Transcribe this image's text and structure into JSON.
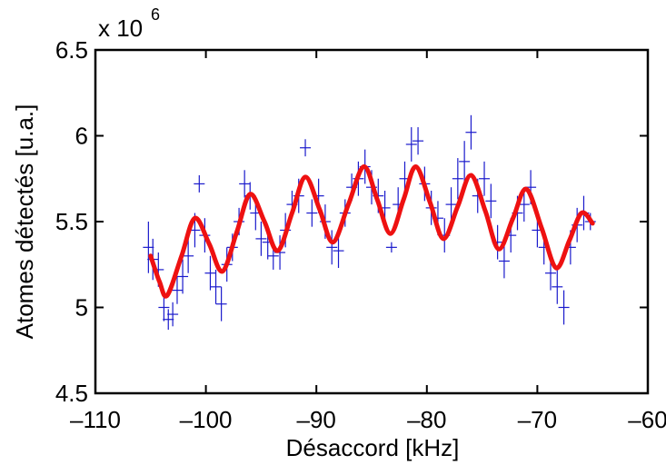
{
  "chart_data": {
    "type": "scatter",
    "x_label": "Désaccord  [kHz]",
    "y_label": "Atomes détectés  [u.a.]",
    "y_multiplier": "x 10",
    "y_multiplier_exponent": "6",
    "xlim": [
      -110,
      -60
    ],
    "xticks": [
      {
        "value": -110,
        "label": "–110"
      },
      {
        "value": -100,
        "label": "–100"
      },
      {
        "value": -90,
        "label": "–90"
      },
      {
        "value": -80,
        "label": "–80"
      },
      {
        "value": -70,
        "label": "–70"
      },
      {
        "value": -60,
        "label": "–60"
      }
    ],
    "ylim": [
      4.5,
      6.5
    ],
    "yticks": [
      4.5,
      5,
      5.5,
      6,
      6.5
    ],
    "points": {
      "color": "#1a1acc",
      "x": [
        -105.2,
        -104.8,
        -104.3,
        -103.8,
        -103.4,
        -103.0,
        -102.6,
        -102.1,
        -101.6,
        -101.0,
        -100.6,
        -100.1,
        -99.6,
        -99.1,
        -98.6,
        -98.1,
        -97.6,
        -97.0,
        -96.5,
        -96.0,
        -95.5,
        -95.0,
        -94.4,
        -93.9,
        -93.3,
        -92.8,
        -92.2,
        -91.6,
        -91.0,
        -90.4,
        -89.8,
        -89.2,
        -88.6,
        -88.0,
        -87.4,
        -86.8,
        -86.2,
        -85.6,
        -85.0,
        -84.4,
        -83.8,
        -83.2,
        -82.6,
        -82.0,
        -81.4,
        -80.8,
        -80.2,
        -79.6,
        -79.0,
        -78.4,
        -77.8,
        -77.2,
        -76.6,
        -76.0,
        -75.4,
        -74.8,
        -74.2,
        -73.6,
        -73.0,
        -72.4,
        -71.8,
        -71.2,
        -70.6,
        -70.0,
        -69.4,
        -68.8,
        -68.2,
        -67.6,
        -67.0,
        -66.4,
        -65.8,
        -65.2
      ],
      "values": [
        5.35,
        5.28,
        5.22,
        5.0,
        4.93,
        4.96,
        5.1,
        5.18,
        5.3,
        5.45,
        5.72,
        5.42,
        5.2,
        5.12,
        5.02,
        5.25,
        5.35,
        5.5,
        5.72,
        5.65,
        5.55,
        5.4,
        5.38,
        5.3,
        5.32,
        5.45,
        5.6,
        5.65,
        5.93,
        5.55,
        5.65,
        5.5,
        5.35,
        5.33,
        5.55,
        5.7,
        5.75,
        5.82,
        5.7,
        5.65,
        5.58,
        5.35,
        5.6,
        5.75,
        5.95,
        5.97,
        5.72,
        5.58,
        5.52,
        5.42,
        5.6,
        5.75,
        5.85,
        6.02,
        5.65,
        5.75,
        5.62,
        5.38,
        5.27,
        5.42,
        5.55,
        5.6,
        5.7,
        5.45,
        5.35,
        5.2,
        5.12,
        5.0,
        5.35,
        5.48,
        5.55,
        5.5
      ],
      "errors": [
        0.15,
        0.12,
        0.1,
        0.08,
        0.06,
        0.07,
        0.08,
        0.1,
        0.1,
        0.1,
        0.05,
        0.1,
        0.1,
        0.1,
        0.1,
        0.1,
        0.08,
        0.08,
        0.08,
        0.08,
        0.1,
        0.1,
        0.1,
        0.08,
        0.1,
        0.1,
        0.08,
        0.1,
        0.05,
        0.08,
        0.1,
        0.1,
        0.1,
        0.1,
        0.08,
        0.08,
        0.1,
        0.1,
        0.1,
        0.1,
        0.1,
        0.03,
        0.1,
        0.1,
        0.1,
        0.08,
        0.1,
        0.1,
        0.1,
        0.1,
        0.1,
        0.12,
        0.12,
        0.1,
        0.1,
        0.1,
        0.1,
        0.1,
        0.1,
        0.1,
        0.1,
        0.1,
        0.1,
        0.1,
        0.1,
        0.1,
        0.1,
        0.1,
        0.1,
        0.1,
        0.1,
        0.05
      ]
    },
    "fit": {
      "color": "#ee1111",
      "x": [
        -105,
        -104.2,
        -103.5,
        -102.2,
        -101,
        -99.7,
        -98.5,
        -97.2,
        -96,
        -94.7,
        -93.5,
        -92.2,
        -91,
        -89.7,
        -88.5,
        -87.1,
        -85.7,
        -84.5,
        -83.3,
        -82.1,
        -81,
        -79.7,
        -78.5,
        -77.2,
        -76,
        -74.7,
        -73.5,
        -72.2,
        -71,
        -69.6,
        -68.3,
        -67.1,
        -66,
        -65
      ],
      "values": [
        5.3,
        5.15,
        5.07,
        5.3,
        5.52,
        5.37,
        5.21,
        5.44,
        5.66,
        5.5,
        5.33,
        5.55,
        5.76,
        5.57,
        5.38,
        5.6,
        5.82,
        5.63,
        5.43,
        5.63,
        5.82,
        5.61,
        5.4,
        5.59,
        5.77,
        5.56,
        5.34,
        5.52,
        5.69,
        5.46,
        5.23,
        5.39,
        5.55,
        5.49
      ]
    }
  }
}
